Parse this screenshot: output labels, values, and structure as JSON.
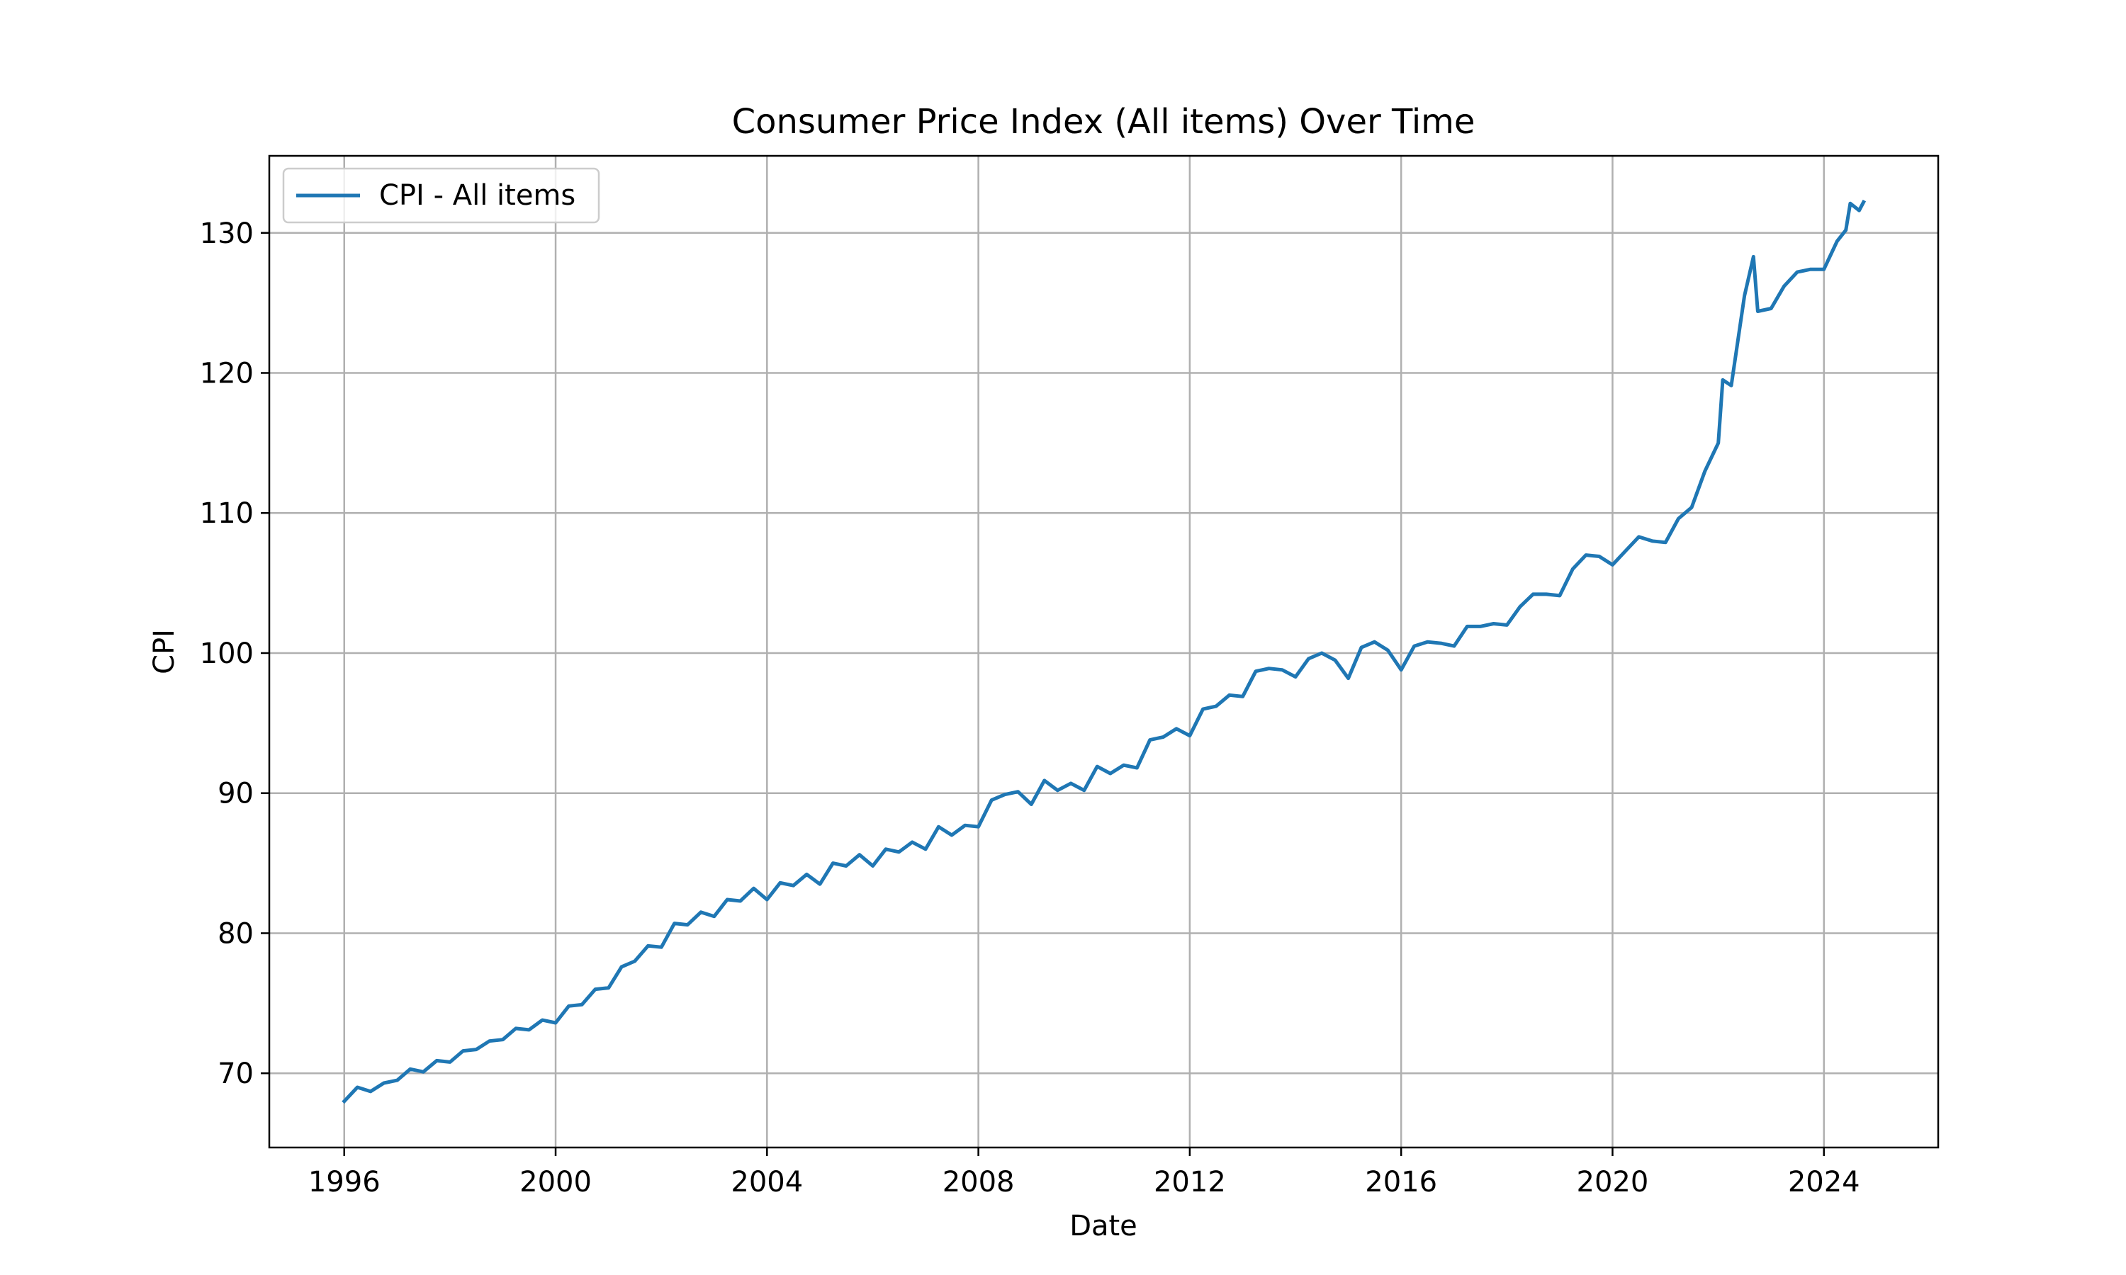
{
  "chart_data": {
    "type": "line",
    "title": "Consumer Price Index (All items) Over Time",
    "xlabel": "Date",
    "ylabel": "CPI",
    "xlim": [
      "1994-08-01",
      "2026-03-01"
    ],
    "ylim": [
      64.7,
      135.5
    ],
    "grid": true,
    "legend_position": "top-left",
    "x_ticks": [
      {
        "date": "1996-01-01",
        "label": "1996"
      },
      {
        "date": "2000-01-01",
        "label": "2000"
      },
      {
        "date": "2004-01-01",
        "label": "2004"
      },
      {
        "date": "2008-01-01",
        "label": "2008"
      },
      {
        "date": "2012-01-01",
        "label": "2012"
      },
      {
        "date": "2016-01-01",
        "label": "2016"
      },
      {
        "date": "2020-01-01",
        "label": "2020"
      },
      {
        "date": "2024-01-01",
        "label": "2024"
      }
    ],
    "y_ticks": [
      {
        "value": 70,
        "label": "70"
      },
      {
        "value": 80,
        "label": "80"
      },
      {
        "value": 90,
        "label": "90"
      },
      {
        "value": 100,
        "label": "100"
      },
      {
        "value": 110,
        "label": "110"
      },
      {
        "value": 120,
        "label": "120"
      },
      {
        "value": 130,
        "label": "130"
      }
    ],
    "series": [
      {
        "name": "CPI - All items",
        "color": "#1f77b4",
        "points": [
          [
            "1996-01-01",
            68.0
          ],
          [
            "1996-04-01",
            69.0
          ],
          [
            "1996-07-01",
            68.7
          ],
          [
            "1996-10-01",
            69.3
          ],
          [
            "1997-01-01",
            69.5
          ],
          [
            "1997-04-01",
            70.3
          ],
          [
            "1997-07-01",
            70.1
          ],
          [
            "1997-10-01",
            70.9
          ],
          [
            "1998-01-01",
            70.8
          ],
          [
            "1998-04-01",
            71.6
          ],
          [
            "1998-07-01",
            71.7
          ],
          [
            "1998-10-01",
            72.3
          ],
          [
            "1999-01-01",
            72.4
          ],
          [
            "1999-04-01",
            73.2
          ],
          [
            "1999-07-01",
            73.1
          ],
          [
            "1999-10-01",
            73.8
          ],
          [
            "2000-01-01",
            73.6
          ],
          [
            "2000-04-01",
            74.8
          ],
          [
            "2000-07-01",
            74.9
          ],
          [
            "2000-10-01",
            76.0
          ],
          [
            "2001-01-01",
            76.1
          ],
          [
            "2001-04-01",
            77.6
          ],
          [
            "2001-07-01",
            78.0
          ],
          [
            "2001-10-01",
            79.1
          ],
          [
            "2002-01-01",
            79.0
          ],
          [
            "2002-04-01",
            80.7
          ],
          [
            "2002-07-01",
            80.6
          ],
          [
            "2002-10-01",
            81.5
          ],
          [
            "2003-01-01",
            81.2
          ],
          [
            "2003-04-01",
            82.4
          ],
          [
            "2003-07-01",
            82.3
          ],
          [
            "2003-10-01",
            83.2
          ],
          [
            "2004-01-01",
            82.4
          ],
          [
            "2004-04-01",
            83.6
          ],
          [
            "2004-07-01",
            83.4
          ],
          [
            "2004-10-01",
            84.2
          ],
          [
            "2005-01-01",
            83.5
          ],
          [
            "2005-04-01",
            85.0
          ],
          [
            "2005-07-01",
            84.8
          ],
          [
            "2005-10-01",
            85.6
          ],
          [
            "2006-01-01",
            84.8
          ],
          [
            "2006-04-01",
            86.0
          ],
          [
            "2006-07-01",
            85.8
          ],
          [
            "2006-10-01",
            86.5
          ],
          [
            "2007-01-01",
            86.0
          ],
          [
            "2007-04-01",
            87.6
          ],
          [
            "2007-07-01",
            87.0
          ],
          [
            "2007-10-01",
            87.7
          ],
          [
            "2008-01-01",
            87.6
          ],
          [
            "2008-04-01",
            89.5
          ],
          [
            "2008-07-01",
            89.9
          ],
          [
            "2008-10-01",
            90.1
          ],
          [
            "2009-01-01",
            89.2
          ],
          [
            "2009-04-01",
            90.9
          ],
          [
            "2009-07-01",
            90.2
          ],
          [
            "2009-10-01",
            90.7
          ],
          [
            "2010-01-01",
            90.2
          ],
          [
            "2010-04-01",
            91.9
          ],
          [
            "2010-07-01",
            91.4
          ],
          [
            "2010-10-01",
            92.0
          ],
          [
            "2011-01-01",
            91.8
          ],
          [
            "2011-04-01",
            93.8
          ],
          [
            "2011-07-01",
            94.0
          ],
          [
            "2011-10-01",
            94.6
          ],
          [
            "2012-01-01",
            94.1
          ],
          [
            "2012-04-01",
            96.0
          ],
          [
            "2012-07-01",
            96.2
          ],
          [
            "2012-10-01",
            97.0
          ],
          [
            "2013-01-01",
            96.9
          ],
          [
            "2013-04-01",
            98.7
          ],
          [
            "2013-07-01",
            98.9
          ],
          [
            "2013-10-01",
            98.8
          ],
          [
            "2014-01-01",
            98.3
          ],
          [
            "2014-04-01",
            99.6
          ],
          [
            "2014-07-01",
            100.0
          ],
          [
            "2014-10-01",
            99.5
          ],
          [
            "2015-01-01",
            98.2
          ],
          [
            "2015-04-01",
            100.4
          ],
          [
            "2015-07-01",
            100.8
          ],
          [
            "2015-10-01",
            100.2
          ],
          [
            "2016-01-01",
            98.8
          ],
          [
            "2016-04-01",
            100.5
          ],
          [
            "2016-07-01",
            100.8
          ],
          [
            "2016-10-01",
            100.7
          ],
          [
            "2017-01-01",
            100.5
          ],
          [
            "2017-04-01",
            101.9
          ],
          [
            "2017-07-01",
            101.9
          ],
          [
            "2017-10-01",
            102.1
          ],
          [
            "2018-01-01",
            102.0
          ],
          [
            "2018-04-01",
            103.3
          ],
          [
            "2018-07-01",
            104.2
          ],
          [
            "2018-10-01",
            104.2
          ],
          [
            "2019-01-01",
            104.1
          ],
          [
            "2019-04-01",
            106.0
          ],
          [
            "2019-07-01",
            107.0
          ],
          [
            "2019-10-01",
            106.9
          ],
          [
            "2020-01-01",
            106.3
          ],
          [
            "2020-04-01",
            107.3
          ],
          [
            "2020-07-01",
            108.3
          ],
          [
            "2020-10-01",
            108.0
          ],
          [
            "2021-01-01",
            107.9
          ],
          [
            "2021-04-01",
            109.6
          ],
          [
            "2021-07-01",
            110.4
          ],
          [
            "2021-10-01",
            113.0
          ],
          [
            "2022-01-01",
            115.0
          ],
          [
            "2022-02-01",
            119.5
          ],
          [
            "2022-04-01",
            119.1
          ],
          [
            "2022-07-01",
            125.5
          ],
          [
            "2022-09-01",
            128.3
          ],
          [
            "2022-10-01",
            124.4
          ],
          [
            "2023-01-01",
            124.6
          ],
          [
            "2023-04-01",
            126.2
          ],
          [
            "2023-07-01",
            127.2
          ],
          [
            "2023-10-01",
            127.4
          ],
          [
            "2024-01-01",
            127.4
          ],
          [
            "2024-04-01",
            129.4
          ],
          [
            "2024-06-01",
            130.2
          ],
          [
            "2024-07-01",
            132.1
          ],
          [
            "2024-09-01",
            131.6
          ],
          [
            "2024-10-01",
            132.2
          ]
        ]
      }
    ]
  }
}
